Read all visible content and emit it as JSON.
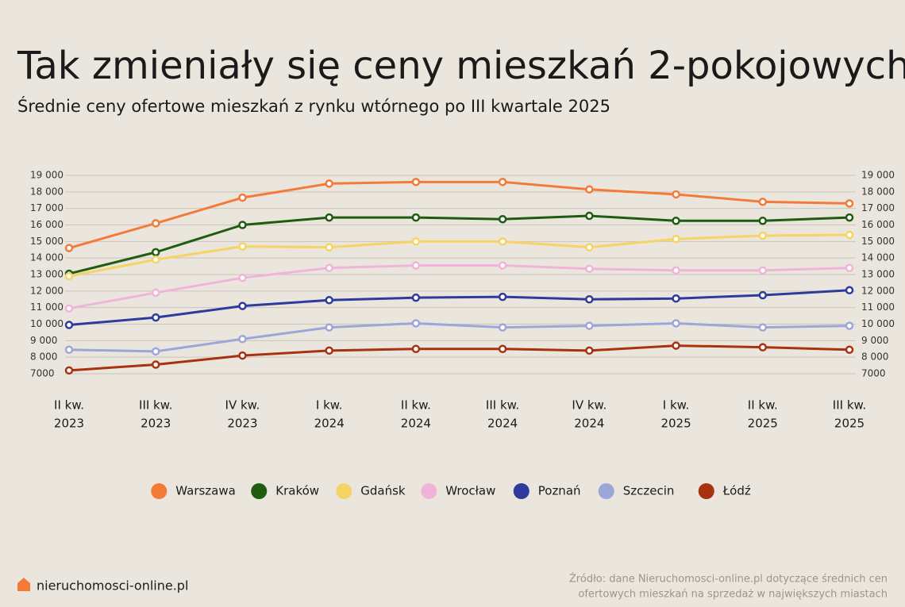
{
  "chart_data": {
    "type": "line",
    "title": "Tak zmieniały się ceny mieszkań 2-pokojowych",
    "subtitle": "Średnie ceny ofertowe mieszkań z rynku wtórnego po III kwartale 2025",
    "categories": [
      [
        "II kw.",
        "2023"
      ],
      [
        "III kw.",
        "2023"
      ],
      [
        "IV kw.",
        "2023"
      ],
      [
        "I kw.",
        "2024"
      ],
      [
        "II kw.",
        "2024"
      ],
      [
        "III kw.",
        "2024"
      ],
      [
        "IV kw.",
        "2024"
      ],
      [
        "I kw.",
        "2025"
      ],
      [
        "II kw.",
        "2025"
      ],
      [
        "III kw.",
        "2025"
      ]
    ],
    "ylim": [
      7000,
      19000
    ],
    "yticks": [
      {
        "value": 7000,
        "label": "7000"
      },
      {
        "value": 8000,
        "label": "8 000"
      },
      {
        "value": 9000,
        "label": "9 000"
      },
      {
        "value": 10000,
        "label": "10 000"
      },
      {
        "value": 11000,
        "label": "11 000"
      },
      {
        "value": 12000,
        "label": "12 000"
      },
      {
        "value": 13000,
        "label": "13 000"
      },
      {
        "value": 14000,
        "label": "14 000"
      },
      {
        "value": 15000,
        "label": "15 000"
      },
      {
        "value": 16000,
        "label": "16 000"
      },
      {
        "value": 17000,
        "label": "17 000"
      },
      {
        "value": 18000,
        "label": "18 000"
      },
      {
        "value": 19000,
        "label": "19 000"
      }
    ],
    "grid": true,
    "series": [
      {
        "name": "Warszawa",
        "color": "#f47a38",
        "values": [
          14600,
          16100,
          17650,
          18500,
          18600,
          18600,
          18150,
          17850,
          17400,
          17300
        ]
      },
      {
        "name": "Kraków",
        "color": "#1f5c12",
        "values": [
          13050,
          14350,
          16000,
          16450,
          16450,
          16350,
          16550,
          16250,
          16250,
          16450
        ]
      },
      {
        "name": "Gdańsk",
        "color": "#f6d365",
        "values": [
          12900,
          13900,
          14700,
          14650,
          15000,
          15000,
          14650,
          15150,
          15350,
          15400
        ]
      },
      {
        "name": "Wrocław",
        "color": "#f0b4d8",
        "values": [
          10950,
          11900,
          12800,
          13400,
          13550,
          13550,
          13350,
          13250,
          13250,
          13400
        ]
      },
      {
        "name": "Poznań",
        "color": "#2e3b9c",
        "values": [
          9950,
          10400,
          11100,
          11450,
          11600,
          11650,
          11500,
          11550,
          11750,
          12050
        ]
      },
      {
        "name": "Szczecin",
        "color": "#9da6d8",
        "values": [
          8450,
          8350,
          9100,
          9800,
          10050,
          9800,
          9900,
          10050,
          9800,
          9900
        ]
      },
      {
        "name": "Łódź",
        "color": "#a83110",
        "values": [
          7200,
          7550,
          8100,
          8400,
          8500,
          8500,
          8400,
          8700,
          8600,
          8450
        ]
      }
    ]
  },
  "footer": {
    "brand": "nieruchomosci-online.pl",
    "source": [
      "Źródło: dane Nieruchomosci-online.pl dotyczące średnich cen",
      "ofertowych mieszkań na sprzedaż w największych miastach"
    ]
  }
}
